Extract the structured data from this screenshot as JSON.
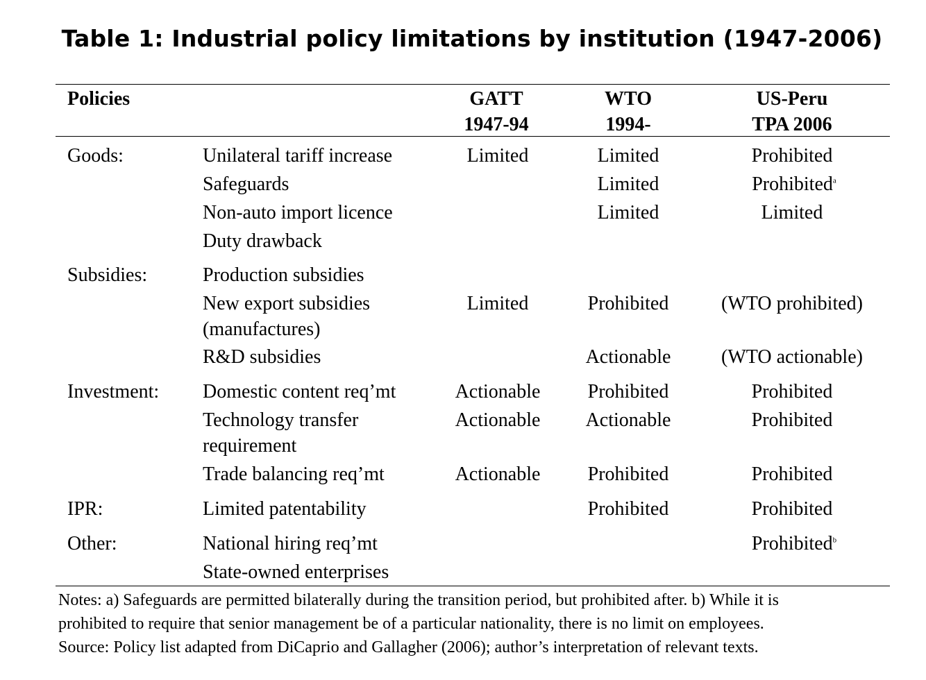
{
  "title": "Table 1: Industrial policy limitations by institution (1947-2006)",
  "header": {
    "policies": "Policies",
    "gatt_line1": "GATT",
    "gatt_line2": "1947-94",
    "wto_line1": "WTO",
    "wto_line2": "1994-",
    "us_line1": "US-Peru",
    "us_line2": "TPA 2006"
  },
  "categories": {
    "goods": "Goods:",
    "subsidies": "Subsidies:",
    "investment": "Investment:",
    "ipr": "IPR:",
    "other": "Other:"
  },
  "rows": {
    "unilateral": {
      "policy": "Unilateral tariff increase",
      "gatt": "Limited",
      "wto": "Limited",
      "us": "Prohibited"
    },
    "safeguards": {
      "policy": "Safeguards",
      "gatt": "",
      "wto": "Limited",
      "us": "Prohibited",
      "us_sup": "a"
    },
    "nonauto": {
      "policy": "Non-auto import licence",
      "gatt": "",
      "wto": "Limited",
      "us": "Limited"
    },
    "drawback": {
      "policy": "Duty drawback",
      "gatt": "",
      "wto": "",
      "us": ""
    },
    "production": {
      "policy": "Production subsidies",
      "gatt": "",
      "wto": "",
      "us": ""
    },
    "export": {
      "policy": "New export subsidies",
      "policy_line2": "(manufactures)",
      "gatt": "Limited",
      "wto": "Prohibited",
      "us": "(WTO prohibited)"
    },
    "rnd": {
      "policy": "R&D subsidies",
      "gatt": "",
      "wto": "Actionable",
      "us": "(WTO actionable)"
    },
    "domestic": {
      "policy": "Domestic content req’mt",
      "gatt": "Actionable",
      "wto": "Prohibited",
      "us": "Prohibited"
    },
    "techtransfer": {
      "policy": "Technology transfer",
      "policy_line2": "requirement",
      "gatt": "Actionable",
      "wto": "Actionable",
      "us": "Prohibited"
    },
    "tradebal": {
      "policy": "Trade balancing req’mt",
      "gatt": "Actionable",
      "wto": "Prohibited",
      "us": "Prohibited"
    },
    "patent": {
      "policy": "Limited patentability",
      "gatt": "",
      "wto": "Prohibited",
      "us": "Prohibited"
    },
    "hiring": {
      "policy": "National hiring req’mt",
      "gatt": "",
      "wto": "",
      "us": "Prohibited",
      "us_sup": "b"
    },
    "soe": {
      "policy": "State-owned enterprises",
      "gatt": "",
      "wto": "",
      "us": ""
    }
  },
  "notes": {
    "line1": "Notes: a) Safeguards are permitted bilaterally during the transition period, but prohibited after. b) While it is",
    "line2": "prohibited to require that senior management be of a particular nationality, there is no limit on employees.",
    "line3": "Source: Policy list adapted from DiCaprio and Gallagher (2006); author’s interpretation of relevant texts."
  }
}
